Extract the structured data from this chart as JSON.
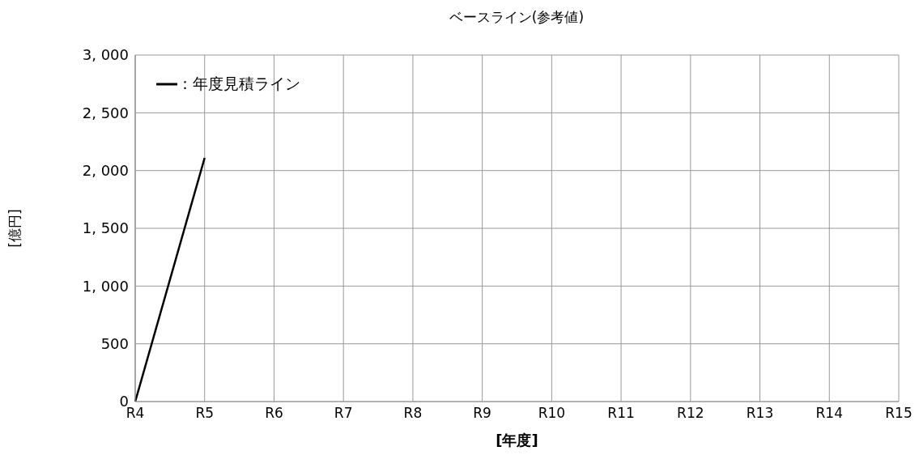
{
  "chart_data": {
    "type": "line",
    "title": "ベースライン(参考値)",
    "xlabel": "[年度]",
    "ylabel": "[億円]",
    "categories": [
      "R4",
      "R5",
      "R6",
      "R7",
      "R8",
      "R9",
      "R10",
      "R11",
      "R12",
      "R13",
      "R14",
      "R15"
    ],
    "series": [
      {
        "name": "：年度見積ライン",
        "color": "#000000",
        "values": [
          0,
          2110,
          null,
          null,
          null,
          null,
          null,
          null,
          null,
          null,
          null,
          null
        ]
      }
    ],
    "ylim": [
      0,
      3000
    ],
    "yticks": [
      0,
      500,
      {
        "value": 1000,
        "label": "1, 000"
      },
      {
        "value": 1500,
        "label": "1, 500"
      },
      {
        "value": 2000,
        "label": "2, 000"
      },
      {
        "value": 2500,
        "label": "2, 500"
      },
      {
        "value": 3000,
        "label": "3, 000"
      }
    ],
    "grid": true,
    "legend": "top left",
    "marker": "none",
    "line_style": "solid"
  }
}
